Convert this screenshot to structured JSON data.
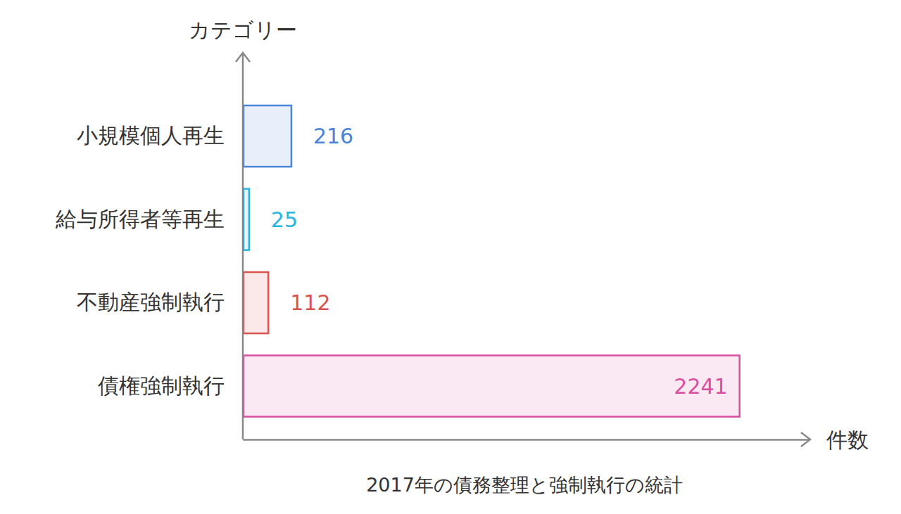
{
  "chart_data": {
    "type": "bar",
    "orientation": "horizontal",
    "title": "2017年の債務整理と強制執行の統計",
    "x_label": "件数",
    "y_label": "カテゴリー",
    "categories": [
      "小規模個人再生",
      "給与所得者等再生",
      "不動産強制執行",
      "債権強制執行"
    ],
    "values": [
      216,
      25,
      112,
      2241
    ],
    "colors": [
      "#4a84d8",
      "#27b5e0",
      "#d9534f",
      "#d94fa0"
    ],
    "xlim": [
      0,
      2560
    ],
    "tick_labels": "y",
    "data_labels": true,
    "grid": false
  }
}
